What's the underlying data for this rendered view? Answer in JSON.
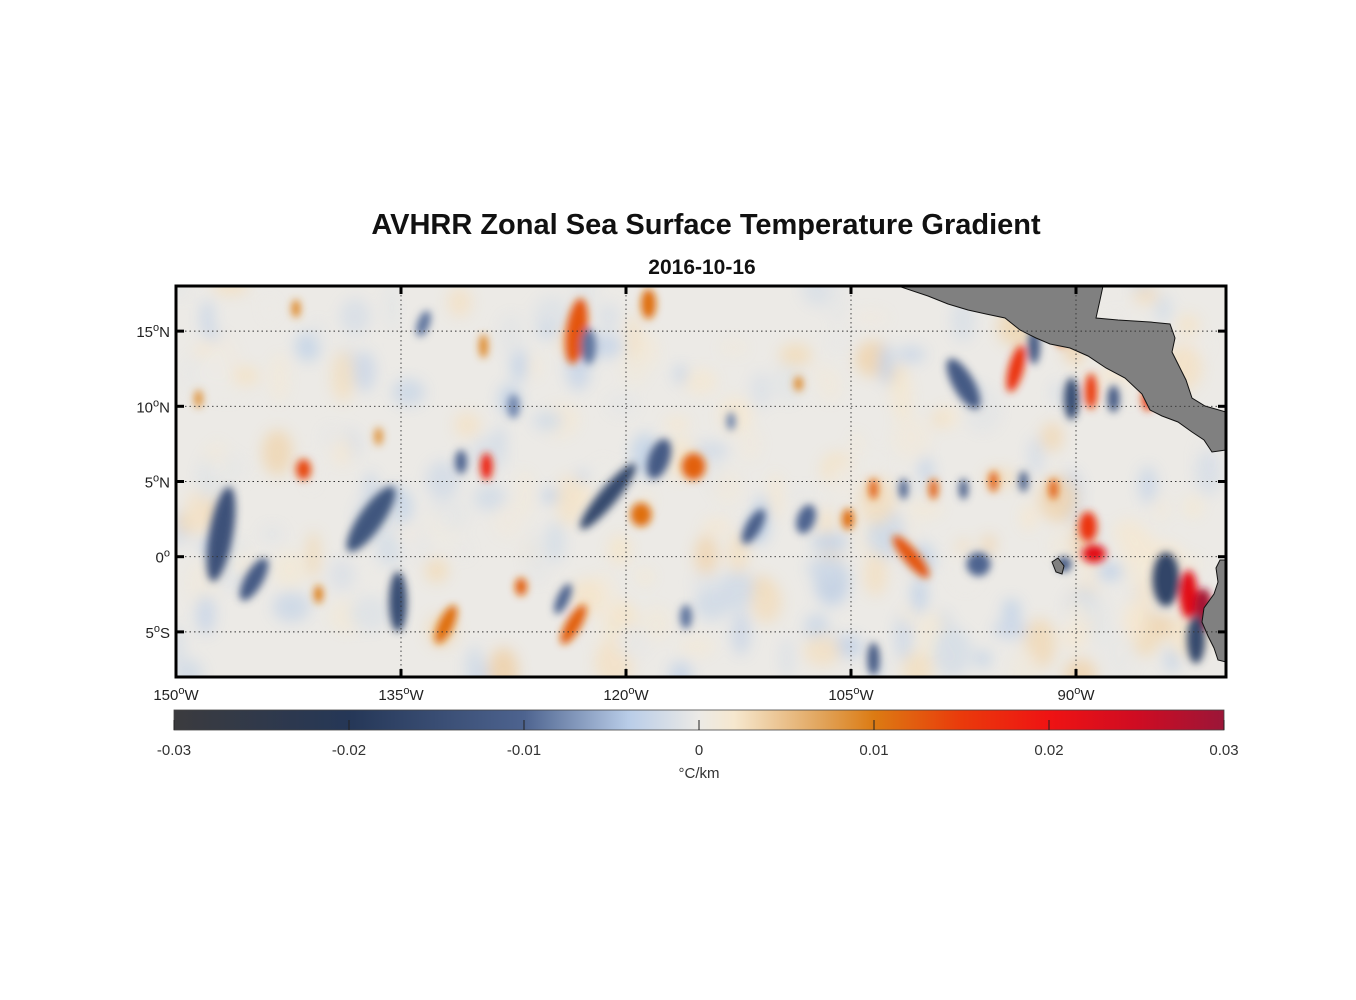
{
  "figure": {
    "title": "AVHRR Zonal Sea Surface Temperature Gradient",
    "subtitle": "2016-10-16"
  },
  "map": {
    "lon_range": [
      -150,
      -80
    ],
    "lat_range": [
      -8,
      18
    ],
    "lon_ticks": [
      {
        "value": -150,
        "num": "150",
        "deg": "o",
        "hem": "W"
      },
      {
        "value": -135,
        "num": "135",
        "deg": "o",
        "hem": "W"
      },
      {
        "value": -120,
        "num": "120",
        "deg": "o",
        "hem": "W"
      },
      {
        "value": -105,
        "num": "105",
        "deg": "o",
        "hem": "W"
      },
      {
        "value": -90,
        "num": "90",
        "deg": "o",
        "hem": "W"
      }
    ],
    "lat_ticks": [
      {
        "value": 15,
        "num": "15",
        "deg": "o",
        "hem": "N"
      },
      {
        "value": 10,
        "num": "10",
        "deg": "o",
        "hem": "N"
      },
      {
        "value": 5,
        "num": "5",
        "deg": "o",
        "hem": "N"
      },
      {
        "value": 0,
        "num": "0",
        "deg": "o",
        "hem": ""
      },
      {
        "value": -5,
        "num": "5",
        "deg": "o",
        "hem": "S"
      }
    ],
    "grid": "dotted",
    "land_color": "#808080",
    "features": [
      {
        "lon": -123.3,
        "lat": 15.0,
        "lon_radius": 0.7,
        "lat_radius": 2.2,
        "value": 0.013,
        "angle": 8
      },
      {
        "lon": -122.5,
        "lat": 14.0,
        "lon_radius": 0.5,
        "lat_radius": 1.2,
        "value": -0.009,
        "angle": 0
      },
      {
        "lon": -118.5,
        "lat": 16.8,
        "lon_radius": 0.5,
        "lat_radius": 1.0,
        "value": 0.011,
        "angle": 0
      },
      {
        "lon": -147.0,
        "lat": 1.5,
        "lon_radius": 0.8,
        "lat_radius": 3.2,
        "value": -0.014,
        "angle": 10
      },
      {
        "lon": -144.8,
        "lat": -1.5,
        "lon_radius": 0.6,
        "lat_radius": 1.6,
        "value": -0.012,
        "angle": 30
      },
      {
        "lon": -141.5,
        "lat": 5.8,
        "lon_radius": 0.5,
        "lat_radius": 0.7,
        "value": 0.014,
        "angle": 0
      },
      {
        "lon": -137.0,
        "lat": 2.5,
        "lon_radius": 0.8,
        "lat_radius": 2.6,
        "value": -0.013,
        "angle": 35
      },
      {
        "lon": -135.2,
        "lat": -3.0,
        "lon_radius": 0.6,
        "lat_radius": 2.0,
        "value": -0.015,
        "angle": 0
      },
      {
        "lon": -132.0,
        "lat": -4.5,
        "lon_radius": 0.5,
        "lat_radius": 1.4,
        "value": 0.011,
        "angle": 25
      },
      {
        "lon": -129.3,
        "lat": 6.0,
        "lon_radius": 0.4,
        "lat_radius": 0.9,
        "value": 0.018,
        "angle": 0
      },
      {
        "lon": -131.0,
        "lat": 6.3,
        "lon_radius": 0.4,
        "lat_radius": 0.8,
        "value": -0.01,
        "angle": 0
      },
      {
        "lon": -121.2,
        "lat": 4.0,
        "lon_radius": 0.6,
        "lat_radius": 2.8,
        "value": -0.016,
        "angle": 40
      },
      {
        "lon": -119.0,
        "lat": 2.8,
        "lon_radius": 0.7,
        "lat_radius": 0.8,
        "value": 0.011,
        "angle": 0
      },
      {
        "lon": -117.8,
        "lat": 6.5,
        "lon_radius": 0.7,
        "lat_radius": 1.4,
        "value": -0.012,
        "angle": 20
      },
      {
        "lon": -115.5,
        "lat": 6.0,
        "lon_radius": 0.8,
        "lat_radius": 0.9,
        "value": 0.012,
        "angle": 0
      },
      {
        "lon": -123.5,
        "lat": -4.5,
        "lon_radius": 0.5,
        "lat_radius": 1.5,
        "value": 0.012,
        "angle": 30
      },
      {
        "lon": -124.2,
        "lat": -2.8,
        "lon_radius": 0.4,
        "lat_radius": 1.1,
        "value": -0.01,
        "angle": 25
      },
      {
        "lon": -111.5,
        "lat": 2.0,
        "lon_radius": 0.5,
        "lat_radius": 1.3,
        "value": -0.011,
        "angle": 30
      },
      {
        "lon": -108.0,
        "lat": 2.5,
        "lon_radius": 0.6,
        "lat_radius": 1.0,
        "value": -0.01,
        "angle": 20
      },
      {
        "lon": -105.2,
        "lat": 2.5,
        "lon_radius": 0.4,
        "lat_radius": 0.7,
        "value": 0.011,
        "angle": 0
      },
      {
        "lon": -101.0,
        "lat": 0.0,
        "lon_radius": 0.5,
        "lat_radius": 1.8,
        "value": 0.013,
        "angle": -40
      },
      {
        "lon": -97.5,
        "lat": 11.5,
        "lon_radius": 0.7,
        "lat_radius": 1.9,
        "value": -0.012,
        "angle": -30
      },
      {
        "lon": -94.0,
        "lat": 12.5,
        "lon_radius": 0.5,
        "lat_radius": 1.6,
        "value": 0.016,
        "angle": 15
      },
      {
        "lon": -92.8,
        "lat": 14.0,
        "lon_radius": 0.4,
        "lat_radius": 1.2,
        "value": -0.012,
        "angle": 0
      },
      {
        "lon": -91.0,
        "lat": 15.0,
        "lon_radius": 0.4,
        "lat_radius": 1.0,
        "value": 0.013,
        "angle": 0
      },
      {
        "lon": -90.3,
        "lat": 10.5,
        "lon_radius": 0.5,
        "lat_radius": 1.4,
        "value": -0.015,
        "angle": 0
      },
      {
        "lon": -89.0,
        "lat": 11.0,
        "lon_radius": 0.4,
        "lat_radius": 1.2,
        "value": 0.015,
        "angle": 0
      },
      {
        "lon": -87.5,
        "lat": 10.5,
        "lon_radius": 0.4,
        "lat_radius": 0.9,
        "value": -0.012,
        "angle": 0
      },
      {
        "lon": -85.2,
        "lat": 10.5,
        "lon_radius": 0.4,
        "lat_radius": 0.8,
        "value": 0.015,
        "angle": 0
      },
      {
        "lon": -103.5,
        "lat": 4.5,
        "lon_radius": 0.3,
        "lat_radius": 0.7,
        "value": 0.012,
        "angle": 0
      },
      {
        "lon": -101.5,
        "lat": 4.5,
        "lon_radius": 0.3,
        "lat_radius": 0.7,
        "value": -0.01,
        "angle": 0
      },
      {
        "lon": -99.5,
        "lat": 4.5,
        "lon_radius": 0.3,
        "lat_radius": 0.7,
        "value": 0.012,
        "angle": 0
      },
      {
        "lon": -97.5,
        "lat": 4.5,
        "lon_radius": 0.3,
        "lat_radius": 0.7,
        "value": -0.011,
        "angle": 0
      },
      {
        "lon": -95.5,
        "lat": 5.0,
        "lon_radius": 0.3,
        "lat_radius": 0.7,
        "value": 0.012,
        "angle": 0
      },
      {
        "lon": -93.5,
        "lat": 5.0,
        "lon_radius": 0.3,
        "lat_radius": 0.7,
        "value": -0.011,
        "angle": 0
      },
      {
        "lon": -91.5,
        "lat": 4.5,
        "lon_radius": 0.3,
        "lat_radius": 0.7,
        "value": 0.012,
        "angle": 0
      },
      {
        "lon": -89.2,
        "lat": 2.0,
        "lon_radius": 0.6,
        "lat_radius": 1.0,
        "value": 0.016,
        "angle": 0
      },
      {
        "lon": -88.8,
        "lat": 0.2,
        "lon_radius": 0.8,
        "lat_radius": 0.6,
        "value": 0.022,
        "angle": 0
      },
      {
        "lon": -90.8,
        "lat": -0.5,
        "lon_radius": 0.5,
        "lat_radius": 0.5,
        "value": -0.012,
        "angle": 0
      },
      {
        "lon": -96.5,
        "lat": -0.5,
        "lon_radius": 0.8,
        "lat_radius": 0.8,
        "value": -0.01,
        "angle": 0
      },
      {
        "lon": -84.0,
        "lat": -1.5,
        "lon_radius": 0.9,
        "lat_radius": 1.8,
        "value": -0.017,
        "angle": 0
      },
      {
        "lon": -82.5,
        "lat": -2.5,
        "lon_radius": 0.6,
        "lat_radius": 1.6,
        "value": 0.022,
        "angle": 0
      },
      {
        "lon": -81.5,
        "lat": -3.5,
        "lon_radius": 0.6,
        "lat_radius": 1.4,
        "value": 0.029,
        "angle": 0
      },
      {
        "lon": -82.0,
        "lat": -5.5,
        "lon_radius": 0.6,
        "lat_radius": 1.6,
        "value": -0.016,
        "angle": 0
      },
      {
        "lon": -103.5,
        "lat": -6.8,
        "lon_radius": 0.4,
        "lat_radius": 1.1,
        "value": -0.012,
        "angle": 0
      },
      {
        "lon": -116.0,
        "lat": -4.0,
        "lon_radius": 0.4,
        "lat_radius": 0.8,
        "value": -0.009,
        "angle": 0
      },
      {
        "lon": -127.0,
        "lat": -2.0,
        "lon_radius": 0.4,
        "lat_radius": 0.6,
        "value": 0.012,
        "angle": 0
      },
      {
        "lon": -140.5,
        "lat": -2.5,
        "lon_radius": 0.3,
        "lat_radius": 0.6,
        "value": 0.01,
        "angle": 0
      },
      {
        "lon": -148.5,
        "lat": 10.5,
        "lon_radius": 0.3,
        "lat_radius": 0.6,
        "value": 0.008,
        "angle": 0
      },
      {
        "lon": -127.5,
        "lat": 10.0,
        "lon_radius": 0.4,
        "lat_radius": 0.8,
        "value": -0.008,
        "angle": 0
      },
      {
        "lon": -142.0,
        "lat": 16.5,
        "lon_radius": 0.3,
        "lat_radius": 0.6,
        "value": 0.009,
        "angle": 0
      },
      {
        "lon": -133.5,
        "lat": 15.5,
        "lon_radius": 0.4,
        "lat_radius": 0.9,
        "value": -0.009,
        "angle": 20
      },
      {
        "lon": -129.5,
        "lat": 14.0,
        "lon_radius": 0.3,
        "lat_radius": 0.8,
        "value": 0.009,
        "angle": 0
      },
      {
        "lon": -136.5,
        "lat": 8.0,
        "lon_radius": 0.3,
        "lat_radius": 0.6,
        "value": 0.008,
        "angle": 0
      },
      {
        "lon": -113.0,
        "lat": 9.0,
        "lon_radius": 0.3,
        "lat_radius": 0.6,
        "value": -0.008,
        "angle": 0
      },
      {
        "lon": -108.5,
        "lat": 11.5,
        "lon_radius": 0.3,
        "lat_radius": 0.5,
        "value": 0.009,
        "angle": 0
      }
    ]
  },
  "colorbar": {
    "min": -0.03,
    "max": 0.03,
    "label": "°C/km",
    "ticks": [
      "-0.03",
      "-0.02",
      "-0.01",
      "0",
      "0.01",
      "0.02",
      "0.03"
    ],
    "stops": [
      {
        "v": -0.03,
        "color": "#3b3b3e"
      },
      {
        "v": -0.02,
        "color": "#253757"
      },
      {
        "v": -0.01,
        "color": "#4d638f"
      },
      {
        "v": -0.004,
        "color": "#b9cde8"
      },
      {
        "v": 0.0,
        "color": "#eceae6"
      },
      {
        "v": 0.002,
        "color": "#f6e8cf"
      },
      {
        "v": 0.007,
        "color": "#e1a45b"
      },
      {
        "v": 0.01,
        "color": "#dc7b13"
      },
      {
        "v": 0.015,
        "color": "#ea3a0b"
      },
      {
        "v": 0.02,
        "color": "#ef1313"
      },
      {
        "v": 0.025,
        "color": "#cf0c22"
      },
      {
        "v": 0.03,
        "color": "#9b1638"
      }
    ]
  }
}
